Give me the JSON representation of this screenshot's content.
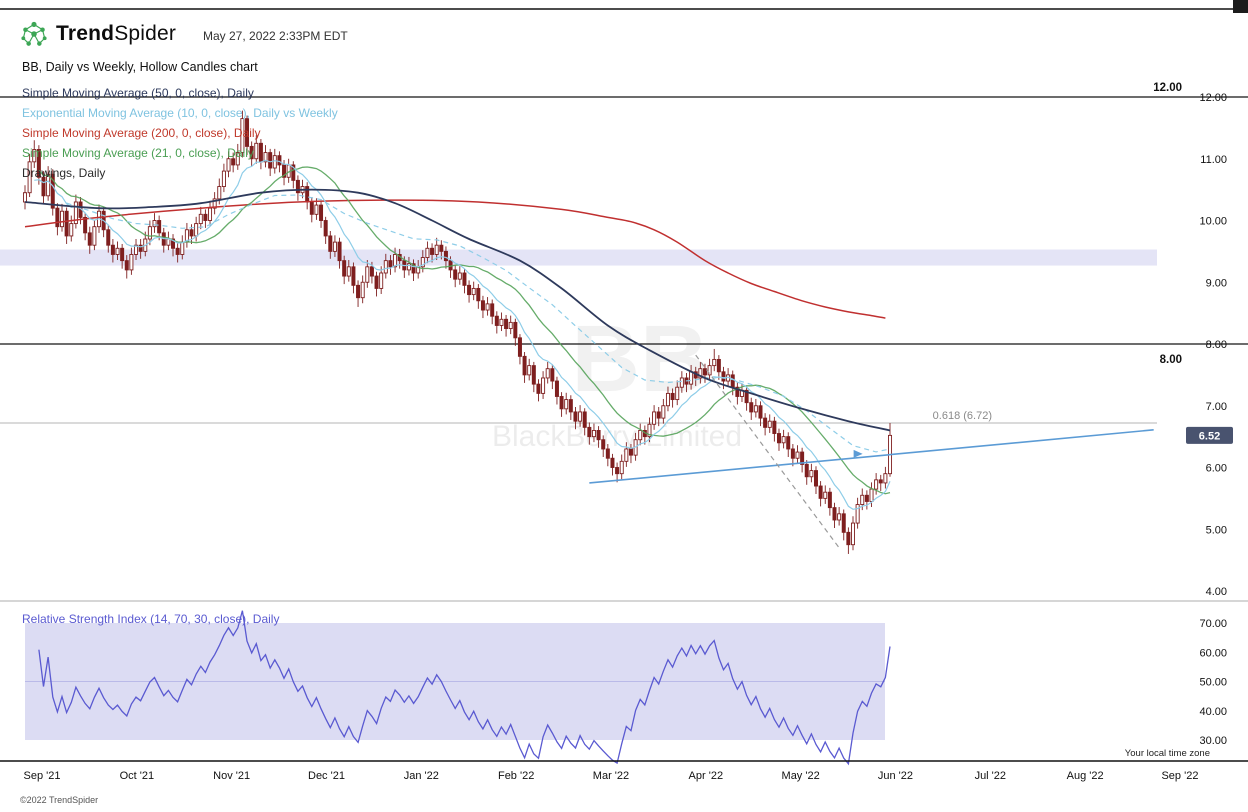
{
  "header": {
    "brand_bold": "Trend",
    "brand_light": "Spider",
    "timestamp": "May 27, 2022 2:33PM EDT"
  },
  "chart_title": "BB, Daily vs Weekly, Hollow Candles chart",
  "indicators": [
    {
      "label": "Simple Moving Average (50, 0, close), Daily",
      "color": "#2e3a5c"
    },
    {
      "label": "Exponential Moving Average (10, 0, close), Daily vs Weekly",
      "color": "#7fc3e0"
    },
    {
      "label": "Simple Moving Average (200, 0, close), Daily",
      "color": "#c0392b"
    },
    {
      "label": "Simple Moving Average (21, 0, close), Daily",
      "color": "#4a9e53"
    },
    {
      "label": "Drawings, Daily",
      "color": "#2b2b2b"
    }
  ],
  "rsi_label": "Relative Strength Index (14, 70, 30, close), Daily",
  "watermark": {
    "ticker": "BB",
    "name": "BlackBerry Limited"
  },
  "footer": {
    "timezone": "Your local time zone",
    "copyright": "©2022 TrendSpider"
  },
  "chart_data": {
    "type": "candlestick",
    "symbol": "BB",
    "price_axis": {
      "labels": [
        "12.00",
        "11.00",
        "10.00",
        "9.00",
        "8.00",
        "7.00",
        "6.00",
        "5.00",
        "4.00"
      ],
      "values": [
        12,
        11,
        10,
        9,
        8,
        7,
        6,
        5,
        4
      ]
    },
    "rsi_axis": {
      "labels": [
        "70.00",
        "60.00",
        "50.00",
        "40.00",
        "30.00"
      ],
      "values": [
        70,
        60,
        50,
        40,
        30
      ]
    },
    "x_labels": [
      "Sep '21",
      "Oct '21",
      "Nov '21",
      "Dec '21",
      "Jan '22",
      "Feb '22",
      "Mar '22",
      "Apr '22",
      "May '22",
      "Jun '22",
      "Jul '22",
      "Aug '22",
      "Sep '22"
    ],
    "candles": [
      [
        10.3,
        10.57,
        10.18,
        10.45
      ],
      [
        10.45,
        11.08,
        10.38,
        10.95
      ],
      [
        10.95,
        11.3,
        10.85,
        11.15
      ],
      [
        11.15,
        11.22,
        10.58,
        10.7
      ],
      [
        10.7,
        10.8,
        10.26,
        10.4
      ],
      [
        10.4,
        10.88,
        10.32,
        10.75
      ],
      [
        10.75,
        10.83,
        10.08,
        10.2
      ],
      [
        10.2,
        10.28,
        9.76,
        9.9
      ],
      [
        9.9,
        10.27,
        9.82,
        10.15
      ],
      [
        10.15,
        10.21,
        9.62,
        9.75
      ],
      [
        9.75,
        10.08,
        9.66,
        9.95
      ],
      [
        9.95,
        10.42,
        9.87,
        10.3
      ],
      [
        10.3,
        10.38,
        9.94,
        10.05
      ],
      [
        10.05,
        10.12,
        9.68,
        9.8
      ],
      [
        9.8,
        9.9,
        9.46,
        9.6
      ],
      [
        9.6,
        10.0,
        9.52,
        9.9
      ],
      [
        9.9,
        10.26,
        9.8,
        10.15
      ],
      [
        10.15,
        10.22,
        9.73,
        9.85
      ],
      [
        9.85,
        9.93,
        9.48,
        9.6
      ],
      [
        9.6,
        9.7,
        9.32,
        9.45
      ],
      [
        9.45,
        9.66,
        9.36,
        9.55
      ],
      [
        9.55,
        9.62,
        9.22,
        9.35
      ],
      [
        9.35,
        9.44,
        9.06,
        9.2
      ],
      [
        9.2,
        9.56,
        9.12,
        9.45
      ],
      [
        9.45,
        9.7,
        9.36,
        9.6
      ],
      [
        9.6,
        9.7,
        9.38,
        9.5
      ],
      [
        9.5,
        9.82,
        9.42,
        9.7
      ],
      [
        9.7,
        10.0,
        9.6,
        9.9
      ],
      [
        9.9,
        10.12,
        9.8,
        10.0
      ],
      [
        10.0,
        10.08,
        9.68,
        9.8
      ],
      [
        9.8,
        9.88,
        9.48,
        9.6
      ],
      [
        9.6,
        9.82,
        9.52,
        9.7
      ],
      [
        9.7,
        9.78,
        9.42,
        9.55
      ],
      [
        9.55,
        9.64,
        9.32,
        9.45
      ],
      [
        9.45,
        9.76,
        9.37,
        9.65
      ],
      [
        9.65,
        9.96,
        9.56,
        9.85
      ],
      [
        9.85,
        9.94,
        9.62,
        9.75
      ],
      [
        9.75,
        10.06,
        9.66,
        9.95
      ],
      [
        9.95,
        10.22,
        9.86,
        10.1
      ],
      [
        10.1,
        10.18,
        9.88,
        10.0
      ],
      [
        10.0,
        10.32,
        9.92,
        10.2
      ],
      [
        10.2,
        10.46,
        10.1,
        10.35
      ],
      [
        10.35,
        10.68,
        10.26,
        10.55
      ],
      [
        10.55,
        10.92,
        10.46,
        10.8
      ],
      [
        10.8,
        11.12,
        10.7,
        11.0
      ],
      [
        11.0,
        11.1,
        10.78,
        10.9
      ],
      [
        10.9,
        11.24,
        10.82,
        11.1
      ],
      [
        11.1,
        11.78,
        11.02,
        11.65
      ],
      [
        11.65,
        11.7,
        11.06,
        11.2
      ],
      [
        11.2,
        11.28,
        10.88,
        11.0
      ],
      [
        11.0,
        11.38,
        10.92,
        11.25
      ],
      [
        11.25,
        11.32,
        10.83,
        10.95
      ],
      [
        10.95,
        11.22,
        10.86,
        11.1
      ],
      [
        11.1,
        11.16,
        10.72,
        10.85
      ],
      [
        10.85,
        11.16,
        10.76,
        11.05
      ],
      [
        11.05,
        11.12,
        10.78,
        10.9
      ],
      [
        10.9,
        10.98,
        10.57,
        10.7
      ],
      [
        10.7,
        11.0,
        10.61,
        10.9
      ],
      [
        10.9,
        10.96,
        10.52,
        10.65
      ],
      [
        10.65,
        10.73,
        10.32,
        10.45
      ],
      [
        10.45,
        10.66,
        10.36,
        10.55
      ],
      [
        10.55,
        10.62,
        10.18,
        10.3
      ],
      [
        10.3,
        10.38,
        9.97,
        10.1
      ],
      [
        10.1,
        10.36,
        10.01,
        10.25
      ],
      [
        10.25,
        10.32,
        9.88,
        10.0
      ],
      [
        10.0,
        10.06,
        9.62,
        9.75
      ],
      [
        9.75,
        9.83,
        9.38,
        9.5
      ],
      [
        9.5,
        9.76,
        9.41,
        9.65
      ],
      [
        9.65,
        9.72,
        9.22,
        9.35
      ],
      [
        9.35,
        9.43,
        8.97,
        9.1
      ],
      [
        9.1,
        9.36,
        9.01,
        9.25
      ],
      [
        9.25,
        9.32,
        8.82,
        8.95
      ],
      [
        8.95,
        9.03,
        8.6,
        8.75
      ],
      [
        8.75,
        9.11,
        8.66,
        9.0
      ],
      [
        9.0,
        9.36,
        8.91,
        9.25
      ],
      [
        9.25,
        9.33,
        8.98,
        9.1
      ],
      [
        9.1,
        9.17,
        8.77,
        8.9
      ],
      [
        8.9,
        9.26,
        8.81,
        9.15
      ],
      [
        9.15,
        9.46,
        9.06,
        9.35
      ],
      [
        9.35,
        9.44,
        9.12,
        9.25
      ],
      [
        9.25,
        9.56,
        9.16,
        9.45
      ],
      [
        9.45,
        9.54,
        9.22,
        9.35
      ],
      [
        9.35,
        9.42,
        9.07,
        9.2
      ],
      [
        9.2,
        9.41,
        9.11,
        9.3
      ],
      [
        9.3,
        9.37,
        9.02,
        9.15
      ],
      [
        9.15,
        9.36,
        9.06,
        9.25
      ],
      [
        9.25,
        9.52,
        9.16,
        9.4
      ],
      [
        9.4,
        9.66,
        9.31,
        9.55
      ],
      [
        9.55,
        9.63,
        9.32,
        9.45
      ],
      [
        9.45,
        9.72,
        9.36,
        9.6
      ],
      [
        9.6,
        9.68,
        9.37,
        9.5
      ],
      [
        9.5,
        9.58,
        9.22,
        9.35
      ],
      [
        9.35,
        9.42,
        9.07,
        9.2
      ],
      [
        9.2,
        9.28,
        8.92,
        9.05
      ],
      [
        9.05,
        9.26,
        8.96,
        9.15
      ],
      [
        9.15,
        9.22,
        8.82,
        8.95
      ],
      [
        8.95,
        9.03,
        8.67,
        8.8
      ],
      [
        8.8,
        9.01,
        8.71,
        8.9
      ],
      [
        8.9,
        8.97,
        8.57,
        8.7
      ],
      [
        8.7,
        8.78,
        8.42,
        8.55
      ],
      [
        8.55,
        8.76,
        8.46,
        8.65
      ],
      [
        8.65,
        8.72,
        8.32,
        8.45
      ],
      [
        8.45,
        8.53,
        8.17,
        8.3
      ],
      [
        8.3,
        8.51,
        8.21,
        8.4
      ],
      [
        8.4,
        8.47,
        8.12,
        8.25
      ],
      [
        8.25,
        8.46,
        8.16,
        8.35
      ],
      [
        8.35,
        8.41,
        7.97,
        8.1
      ],
      [
        8.1,
        8.16,
        7.67,
        7.8
      ],
      [
        7.8,
        7.87,
        7.37,
        7.5
      ],
      [
        7.5,
        7.76,
        7.41,
        7.65
      ],
      [
        7.65,
        7.71,
        7.22,
        7.35
      ],
      [
        7.35,
        7.43,
        7.07,
        7.2
      ],
      [
        7.2,
        7.56,
        7.11,
        7.45
      ],
      [
        7.45,
        7.71,
        7.36,
        7.6
      ],
      [
        7.6,
        7.67,
        7.27,
        7.4
      ],
      [
        7.4,
        7.47,
        7.02,
        7.15
      ],
      [
        7.15,
        7.22,
        6.82,
        6.95
      ],
      [
        6.95,
        7.21,
        6.86,
        7.1
      ],
      [
        7.1,
        7.17,
        6.77,
        6.9
      ],
      [
        6.9,
        6.98,
        6.62,
        6.75
      ],
      [
        6.75,
        7.01,
        6.66,
        6.9
      ],
      [
        6.9,
        6.96,
        6.52,
        6.65
      ],
      [
        6.65,
        6.73,
        6.37,
        6.5
      ],
      [
        6.5,
        6.71,
        6.41,
        6.6
      ],
      [
        6.6,
        6.67,
        6.32,
        6.45
      ],
      [
        6.45,
        6.52,
        6.17,
        6.3
      ],
      [
        6.3,
        6.38,
        6.02,
        6.15
      ],
      [
        6.15,
        6.22,
        5.87,
        6.0
      ],
      [
        6.0,
        6.08,
        5.76,
        5.9
      ],
      [
        5.9,
        6.21,
        5.81,
        6.1
      ],
      [
        6.1,
        6.41,
        6.01,
        6.3
      ],
      [
        6.3,
        6.38,
        6.07,
        6.2
      ],
      [
        6.2,
        6.56,
        6.11,
        6.45
      ],
      [
        6.45,
        6.71,
        6.36,
        6.6
      ],
      [
        6.6,
        6.68,
        6.37,
        6.5
      ],
      [
        6.5,
        6.81,
        6.41,
        6.7
      ],
      [
        6.7,
        7.01,
        6.61,
        6.9
      ],
      [
        6.9,
        6.98,
        6.67,
        6.8
      ],
      [
        6.8,
        7.11,
        6.71,
        7.0
      ],
      [
        7.0,
        7.31,
        6.91,
        7.2
      ],
      [
        7.2,
        7.28,
        6.97,
        7.1
      ],
      [
        7.1,
        7.41,
        7.01,
        7.3
      ],
      [
        7.3,
        7.56,
        7.21,
        7.45
      ],
      [
        7.45,
        7.53,
        7.22,
        7.35
      ],
      [
        7.35,
        7.66,
        7.26,
        7.55
      ],
      [
        7.55,
        7.63,
        7.32,
        7.45
      ],
      [
        7.45,
        7.71,
        7.36,
        7.6
      ],
      [
        7.6,
        7.68,
        7.37,
        7.5
      ],
      [
        7.5,
        7.76,
        7.41,
        7.65
      ],
      [
        7.65,
        7.92,
        7.56,
        7.75
      ],
      [
        7.75,
        7.82,
        7.42,
        7.55
      ],
      [
        7.55,
        7.63,
        7.27,
        7.4
      ],
      [
        7.4,
        7.61,
        7.31,
        7.5
      ],
      [
        7.5,
        7.57,
        7.17,
        7.3
      ],
      [
        7.3,
        7.38,
        7.02,
        7.15
      ],
      [
        7.15,
        7.36,
        7.06,
        7.25
      ],
      [
        7.25,
        7.32,
        6.92,
        7.05
      ],
      [
        7.05,
        7.13,
        6.77,
        6.9
      ],
      [
        6.9,
        7.11,
        6.81,
        7.0
      ],
      [
        7.0,
        7.07,
        6.67,
        6.8
      ],
      [
        6.8,
        6.88,
        6.52,
        6.65
      ],
      [
        6.65,
        6.86,
        6.56,
        6.75
      ],
      [
        6.75,
        6.82,
        6.42,
        6.55
      ],
      [
        6.55,
        6.63,
        6.27,
        6.4
      ],
      [
        6.4,
        6.61,
        6.31,
        6.5
      ],
      [
        6.5,
        6.57,
        6.17,
        6.3
      ],
      [
        6.3,
        6.38,
        6.02,
        6.15
      ],
      [
        6.15,
        6.36,
        6.06,
        6.25
      ],
      [
        6.25,
        6.32,
        5.92,
        6.05
      ],
      [
        6.05,
        6.12,
        5.72,
        5.85
      ],
      [
        5.85,
        6.06,
        5.76,
        5.95
      ],
      [
        5.95,
        6.02,
        5.57,
        5.7
      ],
      [
        5.7,
        5.78,
        5.37,
        5.5
      ],
      [
        5.5,
        5.71,
        5.41,
        5.6
      ],
      [
        5.6,
        5.67,
        5.22,
        5.35
      ],
      [
        5.35,
        5.43,
        5.02,
        5.15
      ],
      [
        5.15,
        5.36,
        5.06,
        5.25
      ],
      [
        5.25,
        5.32,
        4.82,
        4.95
      ],
      [
        4.95,
        5.03,
        4.6,
        4.75
      ],
      [
        4.75,
        5.21,
        4.66,
        5.1
      ],
      [
        5.1,
        5.51,
        5.01,
        5.4
      ],
      [
        5.4,
        5.66,
        5.31,
        5.55
      ],
      [
        5.55,
        5.63,
        5.32,
        5.45
      ],
      [
        5.45,
        5.76,
        5.36,
        5.65
      ],
      [
        5.65,
        5.91,
        5.56,
        5.8
      ],
      [
        5.8,
        5.88,
        5.62,
        5.75
      ],
      [
        5.75,
        6.01,
        5.66,
        5.9
      ],
      [
        5.9,
        6.72,
        5.85,
        6.52
      ]
    ],
    "ma_overlays": {
      "sma50_path": [
        [
          0,
          10.3
        ],
        [
          16,
          10.2
        ],
        [
          28,
          10.22
        ],
        [
          38,
          10.28
        ],
        [
          51,
          10.45
        ],
        [
          62,
          10.5
        ],
        [
          72,
          10.45
        ],
        [
          80,
          10.28
        ],
        [
          88,
          10.0
        ],
        [
          96,
          9.7
        ],
        [
          107,
          9.35
        ],
        [
          116,
          8.9
        ],
        [
          126,
          8.3
        ],
        [
          135,
          7.9
        ],
        [
          147,
          7.45
        ],
        [
          157,
          7.2
        ],
        [
          168,
          6.95
        ],
        [
          178,
          6.75
        ],
        [
          187,
          6.6
        ]
      ],
      "sma200_path": [
        [
          0,
          9.9
        ],
        [
          16,
          10.05
        ],
        [
          38,
          10.2
        ],
        [
          59,
          10.3
        ],
        [
          81,
          10.33
        ],
        [
          98,
          10.3
        ],
        [
          116,
          10.18
        ],
        [
          126,
          10.05
        ],
        [
          131,
          9.98
        ],
        [
          136,
          9.85
        ],
        [
          141,
          9.65
        ],
        [
          147,
          9.35
        ],
        [
          152,
          9.15
        ],
        [
          157,
          8.98
        ],
        [
          162,
          8.85
        ],
        [
          168,
          8.7
        ],
        [
          173,
          8.6
        ],
        [
          178,
          8.52
        ],
        [
          183,
          8.46
        ],
        [
          186,
          8.42
        ]
      ],
      "sma21_period": 21,
      "ema10_period": 10,
      "ema10_weekly_step": 5,
      "rsi": {
        "period": 14,
        "upper": 70,
        "lower": 30
      }
    },
    "drawings": {
      "hlines": [
        {
          "price": 12.0,
          "label": "12.00",
          "label_dy": -6
        },
        {
          "price": 8.0,
          "label": "8.00",
          "label_dy": 19
        }
      ],
      "fib": {
        "price": 6.72,
        "label": "0.618 (6.72)"
      },
      "trendline": {
        "i1": 122,
        "p1": 5.75,
        "i2": 244,
        "p2": 6.61
      },
      "dashed_line": {
        "i1": 145,
        "p1": 7.82,
        "i2": 176,
        "p2": 4.7
      },
      "marker": {
        "i": 180,
        "p": 6.22
      }
    },
    "highlight_band": {
      "from": 9.27,
      "to": 9.53
    },
    "rsi_band": {
      "from": 30,
      "to": 70,
      "mid": 50
    },
    "last_price": 6.52,
    "last_price_label": "6.52",
    "colors": {
      "candle": "#7e1f1f",
      "candle_up_fill": "#ffffff",
      "band": "#b9b9e8",
      "sma50": "#2e3a5c",
      "sma200": "#c03030",
      "sma21": "#55a35a",
      "ema10": "#8ecde8",
      "rsi": "#5a5ad1",
      "blue_drawing": "#5b9bd5",
      "gray_drawing": "#9a9a9a",
      "tag_bg": "#49536f",
      "tag_text": "#ffffff"
    }
  }
}
